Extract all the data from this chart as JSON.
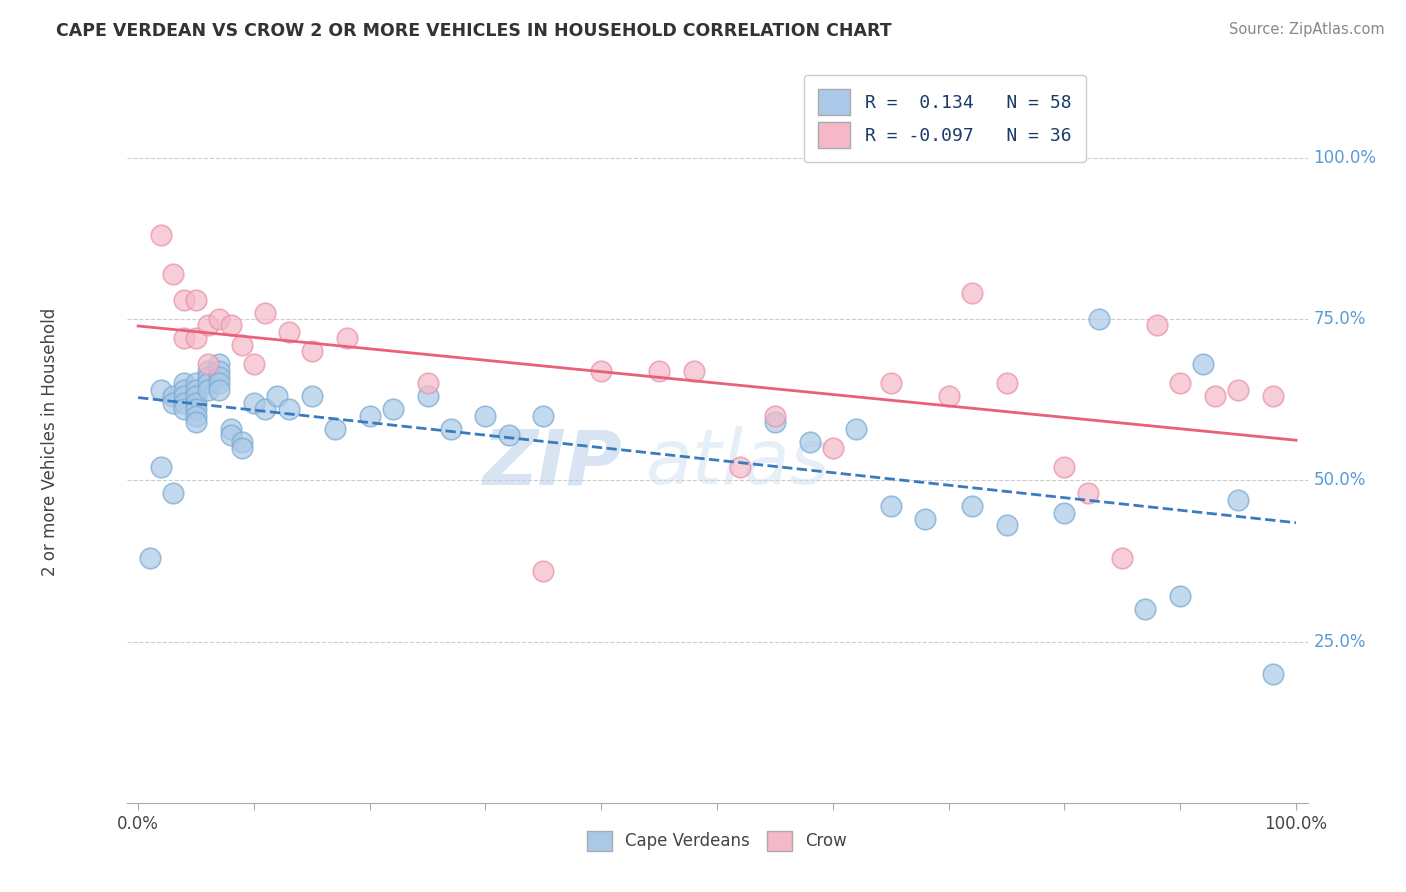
{
  "title": "CAPE VERDEAN VS CROW 2 OR MORE VEHICLES IN HOUSEHOLD CORRELATION CHART",
  "source": "Source: ZipAtlas.com",
  "ylabel": "2 or more Vehicles in Household",
  "legend_label1": "Cape Verdeans",
  "legend_label2": "Crow",
  "r1": 0.134,
  "n1": 58,
  "r2": -0.097,
  "n2": 36,
  "blue_color": "#aac9e8",
  "pink_color": "#f5b8c8",
  "blue_line_color": "#3a7abf",
  "pink_line_color": "#e8607a",
  "blue_scatter_edge": "#7aaad0",
  "pink_scatter_edge": "#e890a8",
  "watermark_zip": "ZIP",
  "watermark_atlas": "atlas",
  "blue_x": [
    0.01,
    0.02,
    0.02,
    0.03,
    0.03,
    0.03,
    0.04,
    0.04,
    0.04,
    0.04,
    0.04,
    0.05,
    0.05,
    0.05,
    0.05,
    0.05,
    0.05,
    0.05,
    0.06,
    0.06,
    0.06,
    0.06,
    0.07,
    0.07,
    0.07,
    0.07,
    0.07,
    0.08,
    0.08,
    0.09,
    0.09,
    0.1,
    0.11,
    0.12,
    0.13,
    0.15,
    0.17,
    0.2,
    0.22,
    0.25,
    0.27,
    0.3,
    0.32,
    0.35,
    0.55,
    0.58,
    0.62,
    0.65,
    0.68,
    0.72,
    0.75,
    0.8,
    0.83,
    0.87,
    0.9,
    0.92,
    0.95,
    0.98
  ],
  "blue_y": [
    0.38,
    0.52,
    0.64,
    0.63,
    0.62,
    0.48,
    0.65,
    0.64,
    0.63,
    0.62,
    0.61,
    0.65,
    0.64,
    0.63,
    0.62,
    0.61,
    0.6,
    0.59,
    0.67,
    0.66,
    0.65,
    0.64,
    0.68,
    0.67,
    0.66,
    0.65,
    0.64,
    0.58,
    0.57,
    0.56,
    0.55,
    0.62,
    0.61,
    0.63,
    0.61,
    0.63,
    0.58,
    0.6,
    0.61,
    0.63,
    0.58,
    0.6,
    0.57,
    0.6,
    0.59,
    0.56,
    0.58,
    0.46,
    0.44,
    0.46,
    0.43,
    0.45,
    0.75,
    0.3,
    0.32,
    0.68,
    0.47,
    0.2
  ],
  "pink_x": [
    0.02,
    0.03,
    0.04,
    0.04,
    0.05,
    0.05,
    0.06,
    0.06,
    0.07,
    0.08,
    0.09,
    0.1,
    0.11,
    0.13,
    0.15,
    0.18,
    0.25,
    0.35,
    0.4,
    0.45,
    0.48,
    0.52,
    0.55,
    0.6,
    0.65,
    0.7,
    0.72,
    0.75,
    0.8,
    0.82,
    0.85,
    0.88,
    0.9,
    0.93,
    0.95,
    0.98
  ],
  "pink_y": [
    0.88,
    0.82,
    0.78,
    0.72,
    0.78,
    0.72,
    0.74,
    0.68,
    0.75,
    0.74,
    0.71,
    0.68,
    0.76,
    0.73,
    0.7,
    0.72,
    0.65,
    0.36,
    0.67,
    0.67,
    0.67,
    0.52,
    0.6,
    0.55,
    0.65,
    0.63,
    0.79,
    0.65,
    0.52,
    0.48,
    0.38,
    0.74,
    0.65,
    0.63,
    0.64,
    0.63
  ],
  "ytick_values": [
    0.25,
    0.5,
    0.75,
    1.0
  ],
  "ytick_labels": [
    "25.0%",
    "50.0%",
    "75.0%",
    "100.0%"
  ],
  "xtick_values": [
    0.0,
    0.1,
    0.2,
    0.3,
    0.4,
    0.5,
    0.6,
    0.7,
    0.8,
    0.9,
    1.0
  ],
  "xtick_labels": [
    "0.0%",
    "",
    "",
    "",
    "",
    "",
    "",
    "",
    "",
    "",
    "100.0%"
  ]
}
